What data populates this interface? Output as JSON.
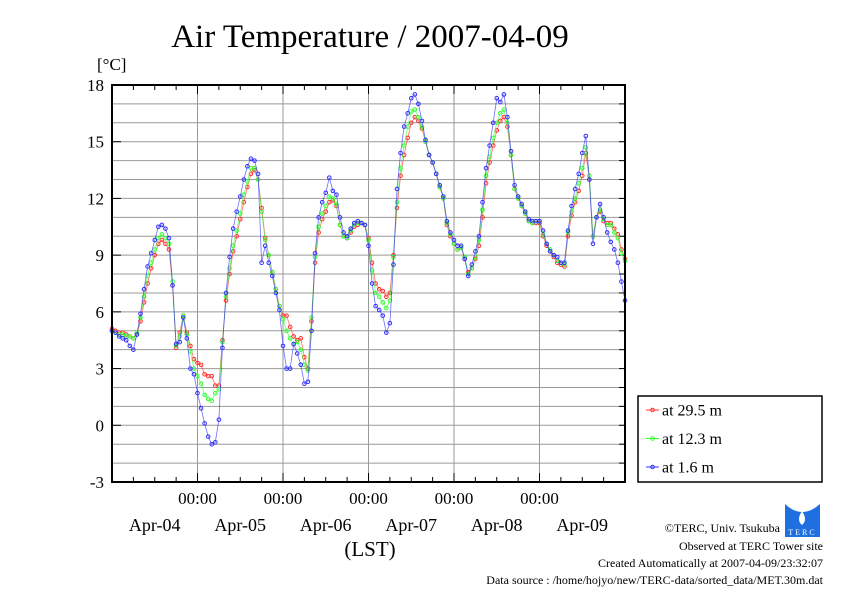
{
  "chart_data": {
    "type": "line",
    "title": "Air Temperature / 2007-04-09",
    "ylabel": "[°C]",
    "xlabel": "(LST)",
    "ylim": [
      -3,
      18
    ],
    "yticks": [
      -3,
      0,
      3,
      6,
      9,
      12,
      15,
      18
    ],
    "ytick_labels": [
      "-3",
      "0",
      "3",
      "6",
      "9",
      "12",
      "15",
      "18"
    ],
    "x_unit": "hours since Apr-04 00:00",
    "xlim": [
      0,
      144
    ],
    "xticks": [
      {
        "hour": 24,
        "time": "00:00"
      },
      {
        "hour": 48,
        "time": "00:00"
      },
      {
        "hour": 72,
        "time": "00:00"
      },
      {
        "hour": 96,
        "time": "00:00"
      },
      {
        "hour": 120,
        "time": "00:00"
      }
    ],
    "day_labels": [
      {
        "hour": 12,
        "label": "Apr-04"
      },
      {
        "hour": 36,
        "label": "Apr-05"
      },
      {
        "hour": 60,
        "label": "Apr-06"
      },
      {
        "hour": 84,
        "label": "Apr-07"
      },
      {
        "hour": 108,
        "label": "Apr-08"
      },
      {
        "hour": 132,
        "label": "Apr-09"
      }
    ],
    "grid": true,
    "legend_position": "right-bottom-outside",
    "x_step_hours": 1,
    "series": [
      {
        "name": "at 29.5 m",
        "color": "#ff3030",
        "values": [
          5.1,
          5.0,
          4.9,
          4.9,
          4.8,
          4.7,
          4.6,
          4.8,
          5.5,
          6.5,
          7.5,
          8.3,
          9.0,
          9.6,
          9.8,
          9.6,
          9.3,
          7.4,
          4.1,
          4.9,
          5.8,
          4.9,
          4.2,
          3.5,
          3.3,
          3.2,
          2.7,
          2.6,
          2.6,
          2.1,
          2.1,
          4.5,
          6.6,
          8.0,
          9.2,
          10.0,
          10.9,
          11.8,
          12.6,
          13.3,
          13.5,
          13.0,
          11.5,
          9.9,
          9.0,
          8.1,
          7.2,
          6.3,
          5.8,
          5.8,
          5.2,
          4.7,
          4.5,
          4.6,
          3.6,
          3.0,
          5.5,
          8.6,
          10.2,
          10.9,
          11.3,
          11.8,
          11.9,
          11.6,
          10.6,
          10.0,
          9.9,
          10.2,
          10.5,
          10.6,
          10.7,
          10.6,
          9.9,
          8.6,
          7.5,
          7.2,
          7.1,
          6.8,
          7.0,
          9.0,
          11.5,
          13.2,
          14.3,
          15.2,
          16.0,
          16.3,
          16.1,
          15.7,
          15.0,
          14.3,
          13.9,
          13.3,
          12.6,
          12.0,
          10.6,
          10.0,
          9.6,
          9.3,
          9.4,
          8.8,
          8.1,
          8.3,
          8.8,
          9.5,
          11.0,
          12.8,
          13.9,
          14.8,
          15.6,
          16.1,
          16.3,
          15.8,
          14.3,
          12.5,
          12.0,
          11.6,
          11.2,
          10.8,
          10.7,
          10.7,
          10.7,
          10.0,
          9.5,
          9.2,
          8.9,
          8.6,
          8.5,
          8.4,
          10.0,
          11.1,
          11.8,
          12.4,
          13.2,
          14.4,
          13.0,
          10.0,
          11.0,
          11.3,
          10.8,
          10.7,
          10.7,
          10.4,
          10.1,
          9.3,
          8.8
        ]
      },
      {
        "name": "at 12.3 m",
        "color": "#30ff30",
        "values": [
          5.0,
          4.9,
          4.8,
          4.8,
          4.7,
          4.7,
          4.6,
          4.9,
          5.7,
          6.8,
          7.9,
          8.6,
          9.3,
          9.9,
          10.1,
          9.9,
          9.6,
          7.6,
          4.2,
          4.7,
          5.8,
          4.8,
          3.9,
          3.0,
          2.6,
          2.2,
          1.6,
          1.4,
          1.3,
          1.7,
          1.9,
          4.4,
          6.8,
          8.3,
          9.5,
          10.3,
          11.2,
          12.2,
          12.9,
          13.6,
          13.6,
          13.0,
          11.3,
          9.8,
          9.0,
          8.1,
          7.2,
          6.3,
          5.6,
          5.0,
          4.6,
          4.3,
          4.4,
          4.0,
          3.2,
          2.9,
          5.7,
          8.9,
          10.5,
          11.2,
          11.6,
          12.1,
          12.0,
          11.7,
          10.6,
          10.0,
          9.9,
          10.3,
          10.6,
          10.7,
          10.7,
          10.6,
          9.8,
          8.2,
          7.0,
          6.8,
          6.5,
          6.2,
          6.6,
          8.9,
          11.8,
          13.6,
          14.8,
          15.8,
          16.6,
          16.7,
          16.3,
          15.8,
          15.0,
          14.3,
          13.9,
          13.3,
          12.6,
          12.0,
          10.7,
          10.1,
          9.6,
          9.3,
          9.4,
          8.9,
          8.0,
          8.3,
          8.9,
          9.8,
          11.4,
          13.2,
          14.2,
          15.2,
          16.0,
          16.5,
          16.7,
          16.0,
          14.3,
          12.5,
          12.0,
          11.6,
          11.2,
          10.8,
          10.7,
          10.8,
          10.8,
          10.1,
          9.6,
          9.3,
          9.0,
          8.7,
          8.6,
          8.5,
          10.2,
          11.3,
          12.0,
          12.8,
          13.6,
          14.7,
          13.2,
          10.0,
          11.0,
          11.4,
          10.9,
          10.6,
          10.6,
          10.2,
          9.9,
          9.1,
          8.7
        ]
      },
      {
        "name": "at 1.6 m",
        "color": "#3030ff",
        "values": [
          5.0,
          4.9,
          4.7,
          4.6,
          4.5,
          4.2,
          4.0,
          4.8,
          5.9,
          7.2,
          8.4,
          9.1,
          9.8,
          10.5,
          10.6,
          10.4,
          9.9,
          7.4,
          4.3,
          4.4,
          5.7,
          4.6,
          3.0,
          2.7,
          1.7,
          0.9,
          0.1,
          -0.6,
          -1.0,
          -0.9,
          0.3,
          4.1,
          7.0,
          8.9,
          10.4,
          11.3,
          12.1,
          13.0,
          13.7,
          14.1,
          14.0,
          13.3,
          8.6,
          9.5,
          8.6,
          7.9,
          7.0,
          6.1,
          4.2,
          3.0,
          3.0,
          4.3,
          3.8,
          3.2,
          2.2,
          2.3,
          5.0,
          9.1,
          11.0,
          11.8,
          12.3,
          13.1,
          12.4,
          12.2,
          11.0,
          10.2,
          10.0,
          10.4,
          10.7,
          10.8,
          10.7,
          10.6,
          9.5,
          7.5,
          6.3,
          6.1,
          5.8,
          4.9,
          5.4,
          8.5,
          12.5,
          14.4,
          15.8,
          16.5,
          17.3,
          17.5,
          17.0,
          16.1,
          15.1,
          14.3,
          13.9,
          13.3,
          12.7,
          12.1,
          10.8,
          10.2,
          9.8,
          9.5,
          9.5,
          8.8,
          7.9,
          8.5,
          9.2,
          10.0,
          11.8,
          13.6,
          14.8,
          16.0,
          17.3,
          17.1,
          17.5,
          16.3,
          14.5,
          12.7,
          12.1,
          11.7,
          11.3,
          10.9,
          10.8,
          10.8,
          10.8,
          10.3,
          9.6,
          9.2,
          9.0,
          8.9,
          8.6,
          8.6,
          10.3,
          11.6,
          12.5,
          13.3,
          14.4,
          15.3,
          13.0,
          9.6,
          11.0,
          11.7,
          11.0,
          10.2,
          9.7,
          9.3,
          8.6,
          7.6,
          6.6
        ]
      }
    ]
  },
  "footer": {
    "copyright": "©TERC, Univ. Tsukuba",
    "observed": "Observed at TERC Tower site",
    "created": "Created Automatically at 2007-04-09/23:32:07",
    "source": "Data source : /home/hojyo/new/TERC-data/sorted_data/MET.30m.dat",
    "logo_text": "TERC"
  }
}
